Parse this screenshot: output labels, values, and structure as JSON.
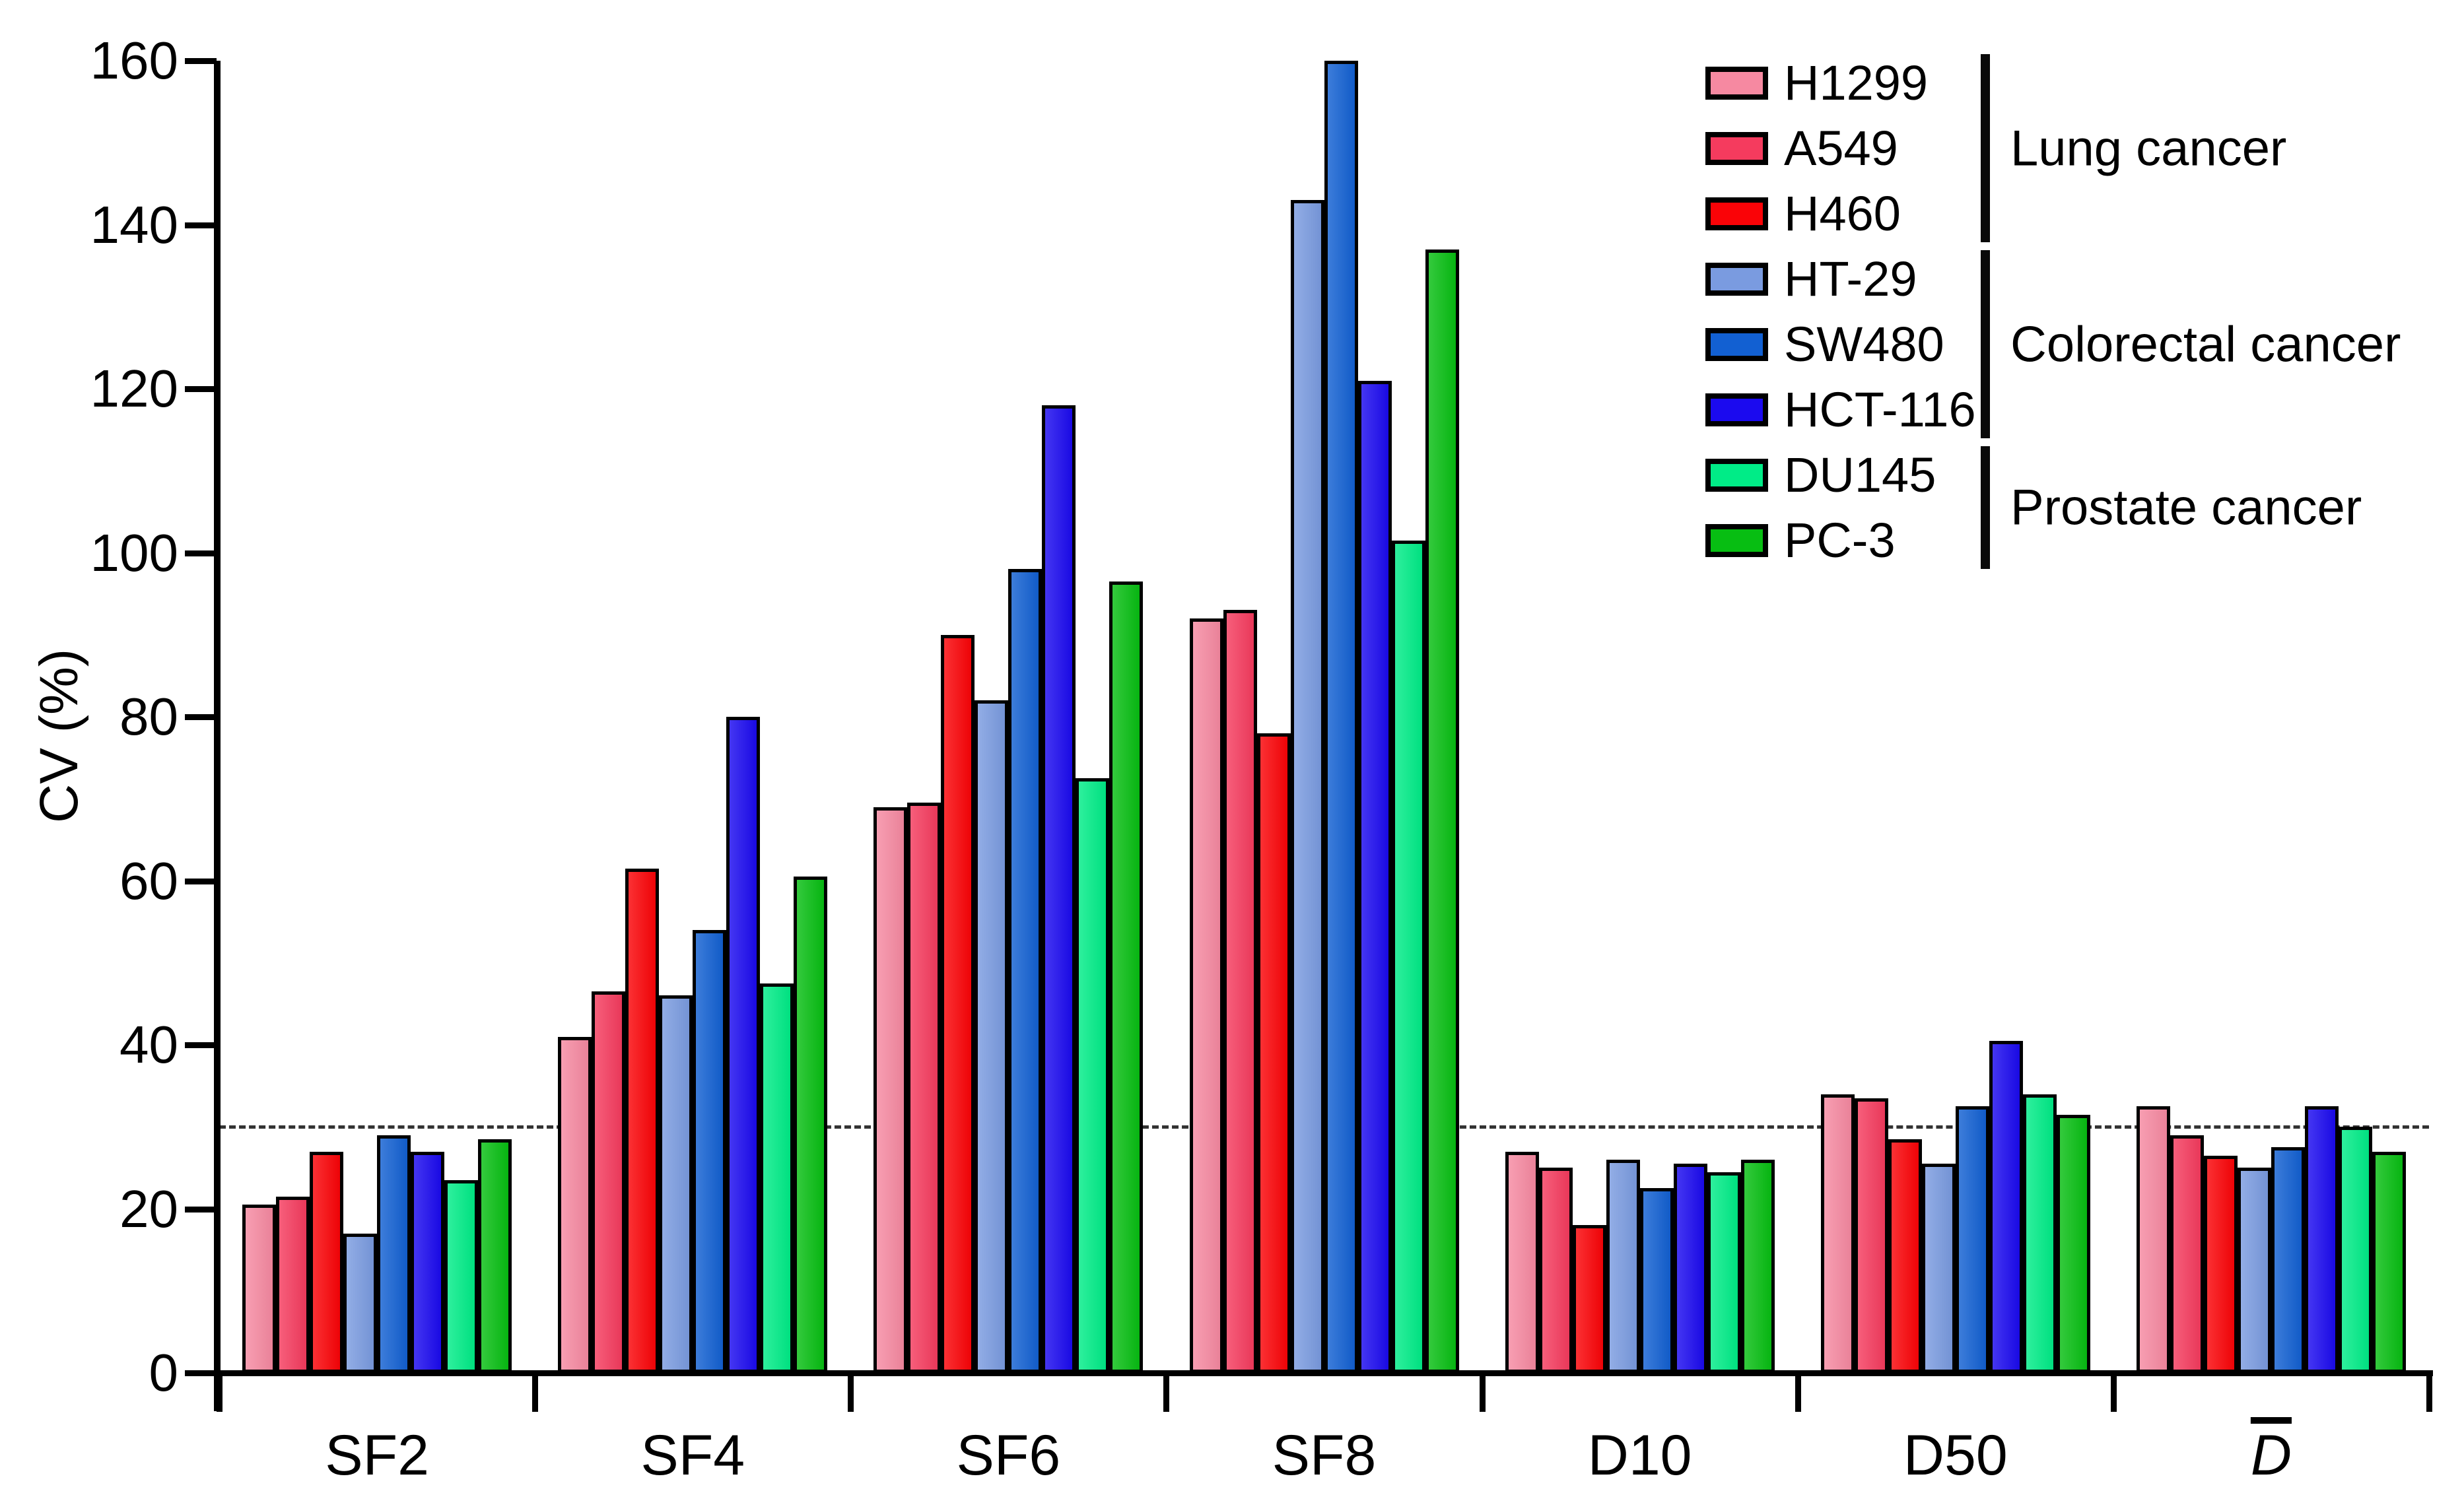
{
  "chart_data": {
    "type": "bar",
    "title": "",
    "ylabel": "CV (%)",
    "xlabel": "",
    "ylim": [
      0,
      160
    ],
    "y_ticks": [
      0,
      20,
      40,
      60,
      80,
      100,
      120,
      140,
      160
    ],
    "grid": false,
    "reference_line": {
      "value": 30,
      "style": "dashed"
    },
    "categories": [
      {
        "label": "SF2",
        "overline": false
      },
      {
        "label": "SF4",
        "overline": false
      },
      {
        "label": "SF6",
        "overline": false
      },
      {
        "label": "SF8",
        "overline": false
      },
      {
        "label": "D10",
        "overline": false
      },
      {
        "label": "D50",
        "overline": false
      },
      {
        "label": "D",
        "overline": true
      }
    ],
    "series": [
      {
        "name": "H1299",
        "color": "#F689A1",
        "values": [
          20.5,
          41,
          69,
          92,
          27,
          34,
          32.5
        ]
      },
      {
        "name": "A549",
        "color": "#F53B5E",
        "values": [
          21.5,
          46.5,
          69.5,
          93,
          25,
          33.5,
          29
        ]
      },
      {
        "name": "H460",
        "color": "#FA0307",
        "values": [
          27,
          61.5,
          90,
          78,
          18,
          28.5,
          26.5
        ]
      },
      {
        "name": "HT-29",
        "color": "#7A9BE0",
        "values": [
          17,
          46,
          82,
          143,
          26,
          25.5,
          25
        ]
      },
      {
        "name": "SW480",
        "color": "#1260D2",
        "values": [
          29,
          54,
          98,
          160,
          22.5,
          32.5,
          27.5
        ]
      },
      {
        "name": "HCT-116",
        "color": "#1B0AEF",
        "values": [
          27,
          80,
          118,
          121,
          25.5,
          40.5,
          32.5
        ]
      },
      {
        "name": "DU145",
        "color": "#00EC87",
        "values": [
          23.5,
          47.5,
          72.5,
          101.5,
          24.5,
          34,
          30
        ]
      },
      {
        "name": "PC-3",
        "color": "#07BE12",
        "values": [
          28.5,
          60.5,
          96.5,
          137,
          26,
          31.5,
          27
        ]
      }
    ],
    "legend_position": "top-right",
    "legend_groups": [
      {
        "label": "Lung cancer",
        "series": [
          "H1299",
          "A549",
          "H460"
        ]
      },
      {
        "label": "Colorectal cancer",
        "series": [
          "HT-29",
          "SW480",
          "HCT-116"
        ]
      },
      {
        "label": "Prostate cancer",
        "series": [
          "DU145",
          "PC-3"
        ]
      }
    ]
  }
}
